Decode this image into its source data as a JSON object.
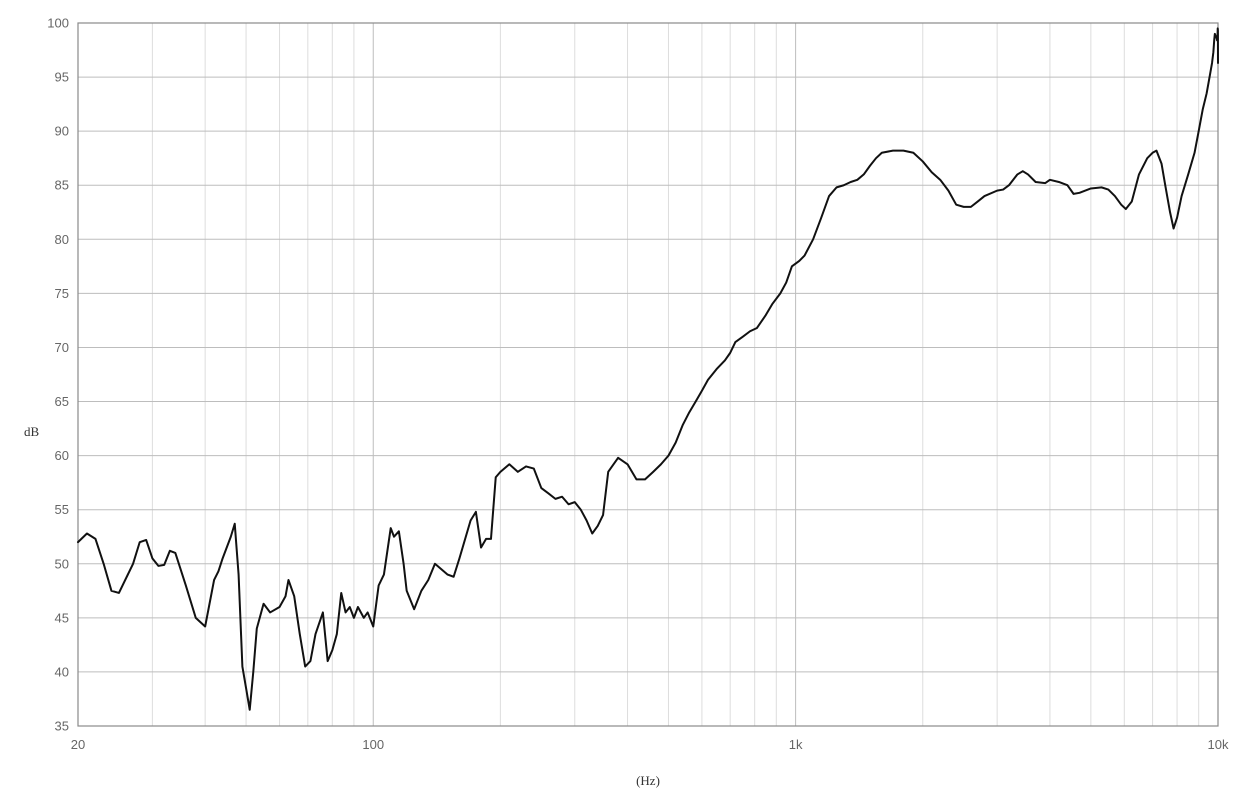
{
  "chart_data": {
    "type": "line",
    "title": "",
    "xlabel": "(Hz)",
    "ylabel": "dB",
    "xscale": "log",
    "xlim": [
      20,
      10000
    ],
    "ylim": [
      35,
      100
    ],
    "grid": true,
    "x_ticks": [
      {
        "value": 20,
        "label": "20"
      },
      {
        "value": 100,
        "label": "100"
      },
      {
        "value": 1000,
        "label": "1k"
      },
      {
        "value": 10000,
        "label": "10k"
      }
    ],
    "y_ticks": [
      35,
      40,
      45,
      50,
      55,
      60,
      65,
      70,
      75,
      80,
      85,
      90,
      95,
      100
    ],
    "series": [
      {
        "color": "#111111",
        "points": [
          [
            20,
            52.0
          ],
          [
            21,
            52.8
          ],
          [
            22,
            52.3
          ],
          [
            23,
            50.0
          ],
          [
            24,
            47.5
          ],
          [
            25,
            47.3
          ],
          [
            27,
            50.0
          ],
          [
            28,
            52.0
          ],
          [
            29,
            52.2
          ],
          [
            30,
            50.5
          ],
          [
            31,
            49.8
          ],
          [
            32,
            49.9
          ],
          [
            33,
            51.2
          ],
          [
            34,
            51.0
          ],
          [
            36,
            48.0
          ],
          [
            38,
            45.0
          ],
          [
            40,
            44.2
          ],
          [
            42,
            48.5
          ],
          [
            43,
            49.3
          ],
          [
            44,
            50.5
          ],
          [
            46,
            52.5
          ],
          [
            47,
            53.7
          ],
          [
            48,
            49.0
          ],
          [
            49,
            40.5
          ],
          [
            50,
            38.5
          ],
          [
            51,
            36.5
          ],
          [
            52,
            40.0
          ],
          [
            53,
            44.0
          ],
          [
            55,
            46.3
          ],
          [
            57,
            45.5
          ],
          [
            60,
            46.0
          ],
          [
            62,
            47.0
          ],
          [
            63,
            48.5
          ],
          [
            65,
            47.0
          ],
          [
            67,
            43.5
          ],
          [
            69,
            40.5
          ],
          [
            71,
            41.0
          ],
          [
            73,
            43.5
          ],
          [
            76,
            45.5
          ],
          [
            78,
            41.0
          ],
          [
            80,
            42.0
          ],
          [
            82,
            43.5
          ],
          [
            84,
            47.3
          ],
          [
            86,
            45.5
          ],
          [
            88,
            46.0
          ],
          [
            90,
            45.0
          ],
          [
            92,
            46.0
          ],
          [
            95,
            45.0
          ],
          [
            97,
            45.5
          ],
          [
            100,
            44.2
          ],
          [
            103,
            48.0
          ],
          [
            106,
            49.0
          ],
          [
            110,
            53.3
          ],
          [
            112,
            52.5
          ],
          [
            115,
            53.0
          ],
          [
            118,
            50.0
          ],
          [
            120,
            47.5
          ],
          [
            125,
            45.8
          ],
          [
            130,
            47.5
          ],
          [
            135,
            48.5
          ],
          [
            140,
            50.0
          ],
          [
            150,
            49.0
          ],
          [
            155,
            48.8
          ],
          [
            160,
            50.5
          ],
          [
            170,
            54.0
          ],
          [
            175,
            54.8
          ],
          [
            180,
            51.5
          ],
          [
            185,
            52.3
          ],
          [
            190,
            52.3
          ],
          [
            195,
            58.0
          ],
          [
            200,
            58.5
          ],
          [
            210,
            59.2
          ],
          [
            220,
            58.5
          ],
          [
            230,
            59.0
          ],
          [
            240,
            58.8
          ],
          [
            250,
            57.0
          ],
          [
            260,
            56.5
          ],
          [
            270,
            56.0
          ],
          [
            280,
            56.2
          ],
          [
            290,
            55.5
          ],
          [
            300,
            55.7
          ],
          [
            310,
            55.0
          ],
          [
            320,
            54.0
          ],
          [
            330,
            52.8
          ],
          [
            340,
            53.5
          ],
          [
            350,
            54.5
          ],
          [
            360,
            58.5
          ],
          [
            380,
            59.8
          ],
          [
            400,
            59.2
          ],
          [
            420,
            57.8
          ],
          [
            440,
            57.8
          ],
          [
            460,
            58.5
          ],
          [
            480,
            59.2
          ],
          [
            500,
            60.0
          ],
          [
            520,
            61.2
          ],
          [
            540,
            62.8
          ],
          [
            560,
            64.0
          ],
          [
            580,
            65.0
          ],
          [
            600,
            66.0
          ],
          [
            620,
            67.0
          ],
          [
            650,
            68.0
          ],
          [
            680,
            68.8
          ],
          [
            700,
            69.5
          ],
          [
            720,
            70.5
          ],
          [
            750,
            71.0
          ],
          [
            780,
            71.5
          ],
          [
            810,
            71.8
          ],
          [
            850,
            73.0
          ],
          [
            880,
            74.0
          ],
          [
            920,
            75.0
          ],
          [
            950,
            76.0
          ],
          [
            980,
            77.5
          ],
          [
            1020,
            78.0
          ],
          [
            1050,
            78.5
          ],
          [
            1100,
            80.0
          ],
          [
            1150,
            82.0
          ],
          [
            1200,
            84.0
          ],
          [
            1250,
            84.8
          ],
          [
            1300,
            85.0
          ],
          [
            1350,
            85.3
          ],
          [
            1400,
            85.5
          ],
          [
            1450,
            86.0
          ],
          [
            1500,
            86.8
          ],
          [
            1550,
            87.5
          ],
          [
            1600,
            88.0
          ],
          [
            1700,
            88.2
          ],
          [
            1800,
            88.2
          ],
          [
            1900,
            88.0
          ],
          [
            2000,
            87.2
          ],
          [
            2100,
            86.2
          ],
          [
            2200,
            85.5
          ],
          [
            2300,
            84.5
          ],
          [
            2400,
            83.2
          ],
          [
            2500,
            83.0
          ],
          [
            2600,
            83.0
          ],
          [
            2700,
            83.5
          ],
          [
            2800,
            84.0
          ],
          [
            3000,
            84.5
          ],
          [
            3100,
            84.6
          ],
          [
            3200,
            85.0
          ],
          [
            3350,
            86.0
          ],
          [
            3450,
            86.3
          ],
          [
            3550,
            86.0
          ],
          [
            3700,
            85.3
          ],
          [
            3900,
            85.2
          ],
          [
            4000,
            85.5
          ],
          [
            4200,
            85.3
          ],
          [
            4400,
            85.0
          ],
          [
            4550,
            84.2
          ],
          [
            4700,
            84.3
          ],
          [
            5000,
            84.7
          ],
          [
            5300,
            84.8
          ],
          [
            5500,
            84.6
          ],
          [
            5700,
            84.0
          ],
          [
            5900,
            83.2
          ],
          [
            6050,
            82.8
          ],
          [
            6250,
            83.5
          ],
          [
            6500,
            86.0
          ],
          [
            6800,
            87.5
          ],
          [
            7000,
            88.0
          ],
          [
            7150,
            88.2
          ],
          [
            7350,
            87.0
          ],
          [
            7500,
            85.0
          ],
          [
            7700,
            82.5
          ],
          [
            7850,
            81.0
          ],
          [
            8000,
            82.0
          ],
          [
            8200,
            84.0
          ],
          [
            8500,
            86.0
          ],
          [
            8800,
            88.0
          ],
          [
            9000,
            90.0
          ],
          [
            9200,
            92.0
          ],
          [
            9400,
            93.5
          ],
          [
            9500,
            94.5
          ],
          [
            9600,
            95.5
          ],
          [
            9680,
            96.3
          ],
          [
            9750,
            97.3
          ],
          [
            9800,
            98.5
          ],
          [
            9830,
            99.0
          ],
          [
            9870,
            98.8
          ],
          [
            9910,
            98.7
          ],
          [
            9950,
            98.4
          ],
          [
            9970,
            98.5
          ],
          [
            9985,
            99.5
          ],
          [
            9995,
            99.3
          ],
          [
            10000,
            96.3
          ]
        ]
      }
    ]
  }
}
